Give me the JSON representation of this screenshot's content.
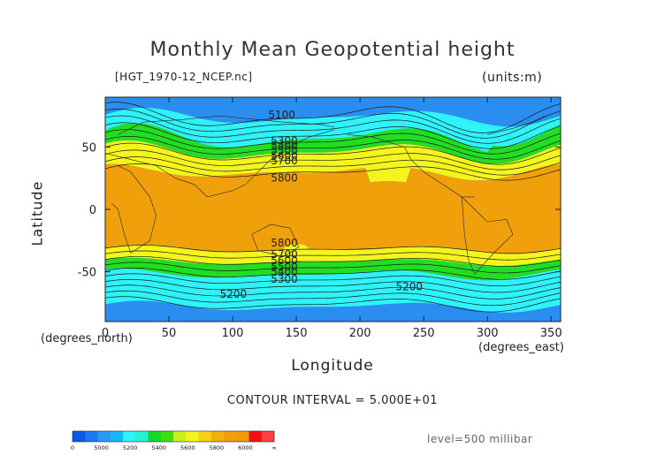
{
  "chart_data": {
    "type": "heatmap",
    "title": "Monthly Mean Geopotential height",
    "file_label": "[HGT_1970-12_NCEP.nc]",
    "units_label": "(units:m)",
    "xlabel": "Longitude",
    "ylabel": "Latitude",
    "x_unit_label": "(degrees_north)",
    "x_unit_label_right": "(degrees_east)",
    "xlim": [
      0,
      357.5
    ],
    "ylim": [
      -90,
      90
    ],
    "x_ticks": [
      0,
      50,
      100,
      150,
      200,
      250,
      300,
      350
    ],
    "x_tick_labels": [
      "0",
      "50",
      "100",
      "150",
      "200",
      "250",
      "300",
      "350"
    ],
    "y_ticks": [
      50,
      0,
      -50
    ],
    "y_tick_labels": [
      "50",
      "0",
      "-50"
    ],
    "contour_interval_text": "CONTOUR INTERVAL = 5.000E+01",
    "level_text": "level=500 millibar",
    "contour_labels": [
      {
        "text": "5100",
        "x": 128,
        "y": 76
      },
      {
        "text": "5300",
        "x": 130,
        "y": 55
      },
      {
        "text": "5400",
        "x": 130,
        "y": 51
      },
      {
        "text": "5500",
        "x": 130,
        "y": 47
      },
      {
        "text": "5600",
        "x": 130,
        "y": 43
      },
      {
        "text": "5700",
        "x": 130,
        "y": 39
      },
      {
        "text": "5800",
        "x": 130,
        "y": 25
      },
      {
        "text": "5800",
        "x": 130,
        "y": -27
      },
      {
        "text": "5700",
        "x": 130,
        "y": -36
      },
      {
        "text": "5600",
        "x": 130,
        "y": -41
      },
      {
        "text": "5500",
        "x": 130,
        "y": -46
      },
      {
        "text": "5400",
        "x": 130,
        "y": -50
      },
      {
        "text": "5300",
        "x": 130,
        "y": -56
      },
      {
        "text": "5200",
        "x": 90,
        "y": -68
      },
      {
        "text": "5200",
        "x": 228,
        "y": -62
      }
    ],
    "bands_south_to_north": [
      {
        "range": "5000-5200",
        "color": "#2a8ef0"
      },
      {
        "range": "5200-5400",
        "color": "#2ef3f9"
      },
      {
        "range": "5400-5600",
        "color": "#22dd22"
      },
      {
        "range": "5600-5800",
        "color": "#f5f51e"
      },
      {
        "range": "5800-6000",
        "color": "#f0a00a"
      }
    ],
    "colorbar": {
      "ticks": [
        "0",
        "5000",
        "5200",
        "5400",
        "5600",
        "5800",
        "6000",
        "∞"
      ],
      "colors": [
        "#0a58e6",
        "#1a78f0",
        "#2a98f5",
        "#16b8f5",
        "#2ef3f9",
        "#22f3d2",
        "#12d82a",
        "#40e010",
        "#c8f01a",
        "#f5f51e",
        "#f8d212",
        "#f0b00e",
        "#f0a00a",
        "#f09a08",
        "#f40f0f",
        "#ff4040"
      ]
    }
  }
}
